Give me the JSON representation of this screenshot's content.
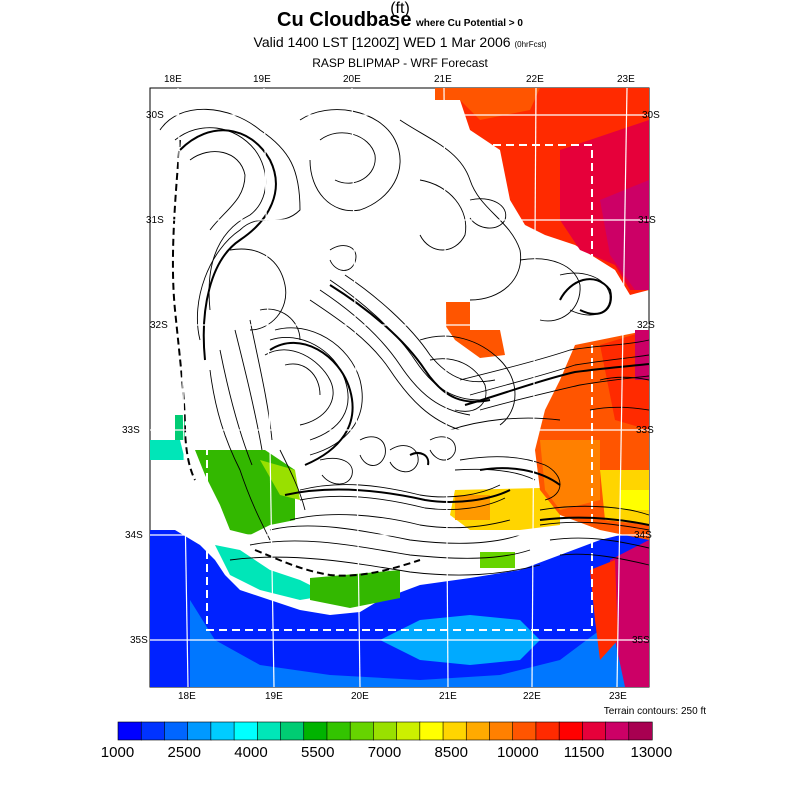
{
  "title": {
    "main": "Cu Cloudbase",
    "qualifier": "where Cu Potential > 0",
    "valid": "Valid 1400 LST [1200Z] WED 1 Mar 2006",
    "fcst": "(0hrFcst)",
    "source": "RASP BLIPMAP - WRF Forecast"
  },
  "longitudes_top": [
    "18E",
    "19E",
    "20E",
    "21E",
    "22E",
    "23E"
  ],
  "longitudes_bottom": [
    "18E",
    "19E",
    "20E",
    "21E",
    "22E",
    "23E"
  ],
  "latitudes": [
    "30S",
    "31S",
    "32S",
    "33S",
    "34S",
    "35S"
  ],
  "terrain_note": "Terrain contours: 250 ft",
  "colorbar": {
    "labels": [
      "1000",
      "2500",
      "4000",
      "5500",
      "7000",
      "8500",
      "10000",
      "11500",
      "13000"
    ],
    "units": "(ft)",
    "colors": [
      "#0000ff",
      "#0033ff",
      "#0066ff",
      "#0099ff",
      "#00ccff",
      "#00ffff",
      "#00e6b8",
      "#00cc73",
      "#00b300",
      "#33c400",
      "#66d400",
      "#99e000",
      "#ccf000",
      "#ffff00",
      "#ffd500",
      "#ffaa00",
      "#ff8000",
      "#ff5500",
      "#ff2a00",
      "#ff0000",
      "#e6003a",
      "#cc0066",
      "#a80051"
    ]
  }
}
